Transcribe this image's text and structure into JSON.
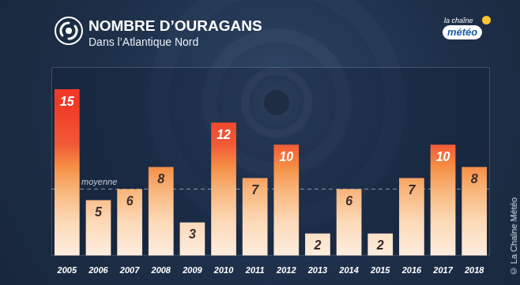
{
  "chart_data": {
    "type": "bar",
    "title": "NOMBRE D’OURAGANS",
    "subtitle": "Dans l’Atlantique Nord",
    "categories": [
      "2005",
      "2006",
      "2007",
      "2008",
      "2009",
      "2010",
      "2011",
      "2012",
      "2013",
      "2014",
      "2015",
      "2016",
      "2017",
      "2018"
    ],
    "values": [
      15,
      5,
      6,
      8,
      3,
      12,
      7,
      10,
      2,
      6,
      2,
      7,
      10,
      8
    ],
    "color": "#f03a27",
    "ylim": [
      0,
      17
    ],
    "grid": false,
    "data_labels": true,
    "tick_labels": "x",
    "annotations": [
      {
        "text": "moyenne",
        "y": 6
      }
    ],
    "logo": [
      "la chaîne",
      "météo"
    ],
    "credit": "© La Chaîne Météo"
  }
}
